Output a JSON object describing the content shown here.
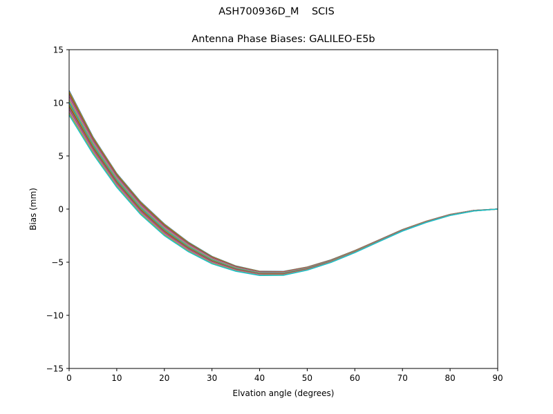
{
  "chart_data": {
    "type": "line",
    "suptitle": "ASH700936D_M    SCIS",
    "title": "Antenna Phase Biases: GALILEO-E5b",
    "xlabel": "Elvation angle (degrees)",
    "ylabel": "Bias (mm)",
    "xlim": [
      0,
      90
    ],
    "ylim": [
      -15,
      15
    ],
    "xticks": [
      0,
      10,
      20,
      30,
      40,
      50,
      60,
      70,
      80,
      90
    ],
    "yticks": [
      -15,
      -10,
      -5,
      0,
      5,
      10,
      15
    ],
    "ytick_labels": [
      "−15",
      "−10",
      "−5",
      "0",
      "5",
      "10",
      "15"
    ],
    "grid": false,
    "legend": null,
    "x": [
      0,
      5,
      10,
      15,
      20,
      25,
      30,
      35,
      40,
      45,
      50,
      55,
      60,
      65,
      70,
      75,
      80,
      85,
      90
    ],
    "center_values": [
      10.0,
      6.0,
      2.7,
      0.1,
      -1.95,
      -3.55,
      -4.8,
      -5.6,
      -6.05,
      -6.05,
      -5.6,
      -4.9,
      -4.0,
      -3.0,
      -2.0,
      -1.2,
      -0.55,
      -0.15,
      0.0
    ],
    "band_halfwidth": [
      1.15,
      0.8,
      0.65,
      0.6,
      0.55,
      0.45,
      0.35,
      0.25,
      0.2,
      0.18,
      0.15,
      0.12,
      0.1,
      0.08,
      0.07,
      0.06,
      0.05,
      0.03,
      0.0
    ],
    "series_count": 20,
    "series_note": "Family of curves (one per azimuth) forming a narrow band; values = center + k * band_halfwidth, k from -1 to 1",
    "colors": [
      "#1f77b4",
      "#ff7f0e",
      "#2ca02c",
      "#d62728",
      "#9467bd",
      "#8c564b",
      "#e377c2",
      "#7f7f7f",
      "#bcbd22",
      "#17becf"
    ]
  }
}
